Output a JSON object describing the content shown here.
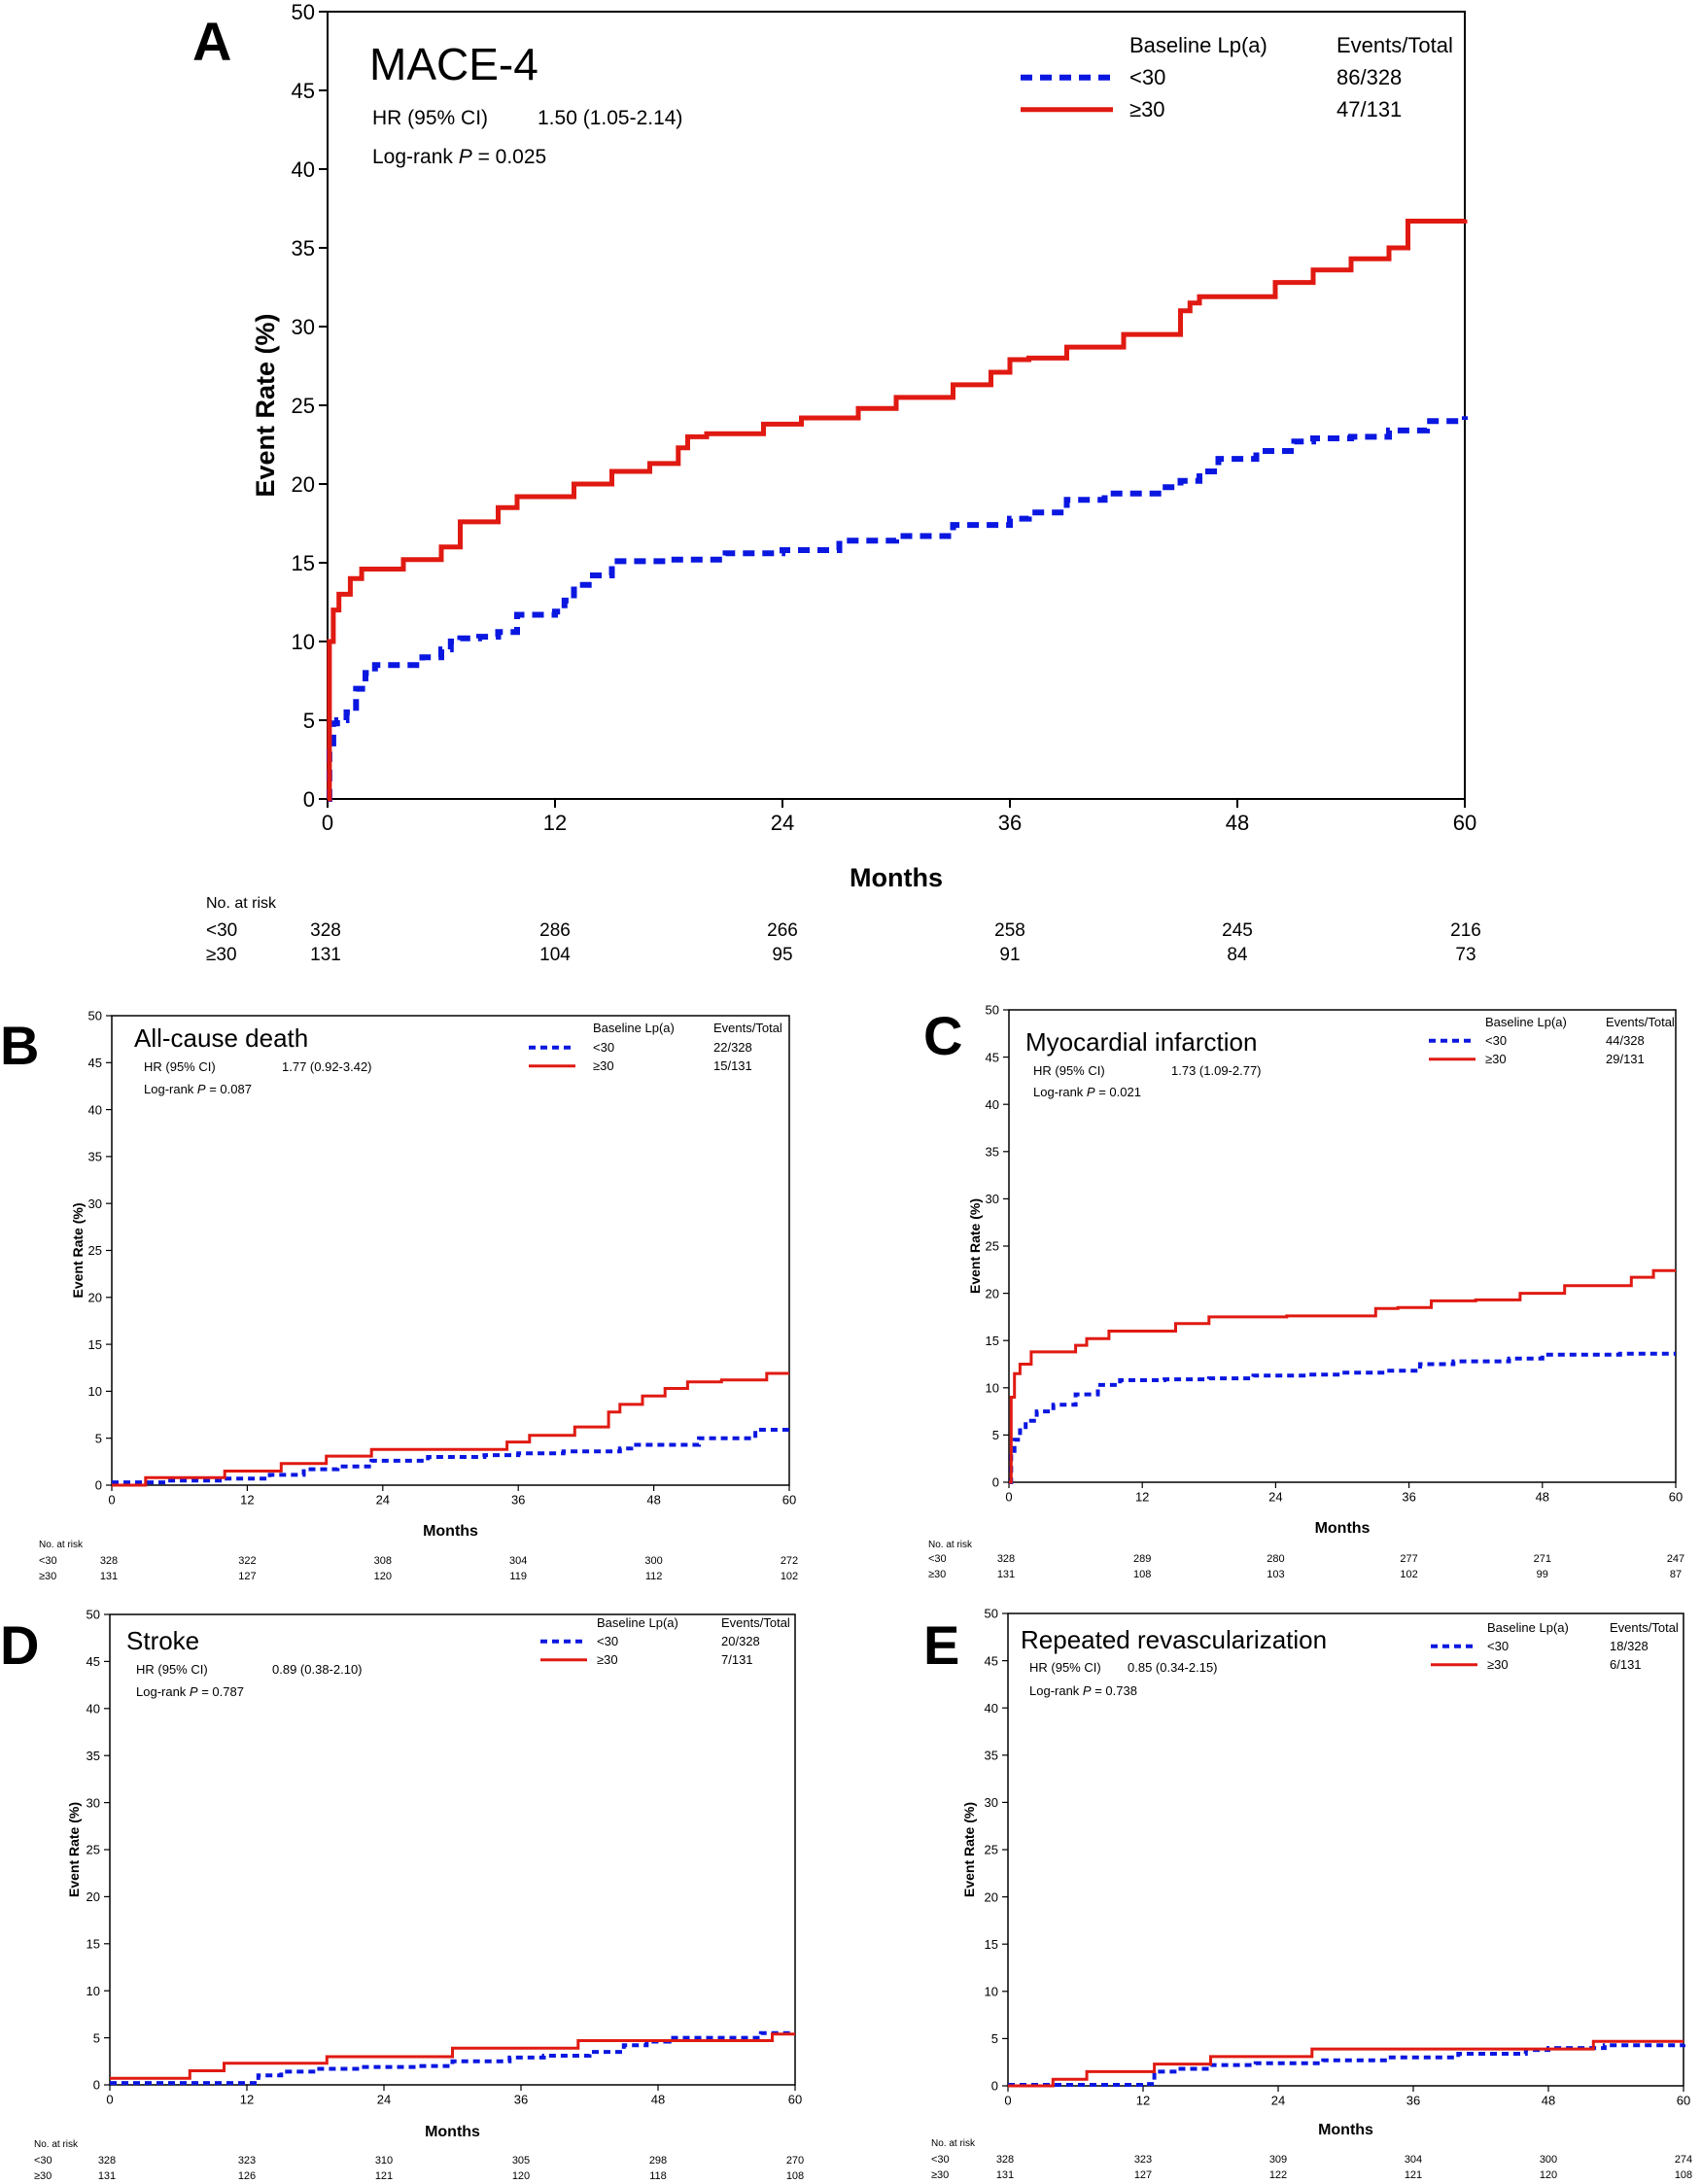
{
  "figure": {
    "series_colors": {
      "low": "#0a17e0",
      "high": "#e01a12"
    },
    "axis_color": "#000000"
  },
  "chart_data": [
    {
      "panel": "A",
      "type": "line",
      "title": "MACE-4",
      "hr_label": "HR (95% CI)",
      "hr_value": "1.50 (1.05-2.14)",
      "logrank_label": "Log-rank ",
      "p_symbol": "P",
      "p_eq": " = 0.025",
      "legend_header": "Baseline Lp(a)",
      "legend_events_header": "Events/Total",
      "xlabel": "Months",
      "ylabel": "Event Rate (%)",
      "xlim": [
        0,
        60
      ],
      "ylim": [
        0,
        50
      ],
      "xticks": [
        0,
        12,
        24,
        36,
        48,
        60
      ],
      "yticks": [
        0,
        5,
        10,
        15,
        20,
        25,
        30,
        35,
        40,
        45,
        50
      ],
      "risk_title": "No. at risk",
      "series": [
        {
          "name": "<30",
          "events": "86/328",
          "style": "dashed",
          "color": "#0a17e0",
          "at_risk": [
            "328",
            "286",
            "266",
            "258",
            "245",
            "216"
          ],
          "x": [
            0,
            0.1,
            0.3,
            0.5,
            1,
            1.5,
            2,
            2.5,
            4,
            5,
            6,
            6.5,
            7,
            8,
            9,
            10,
            12,
            12.5,
            13,
            14,
            15,
            18,
            21,
            24,
            27,
            30,
            33,
            36,
            37,
            39,
            41,
            44,
            45,
            46,
            47,
            49,
            51,
            52,
            54,
            56,
            58,
            60
          ],
          "y": [
            0,
            3,
            4.8,
            5.0,
            5.5,
            7.0,
            8.0,
            8.5,
            8.5,
            9.0,
            9.5,
            10.0,
            10.2,
            10.3,
            10.6,
            11.7,
            11.9,
            12.6,
            13.6,
            14.2,
            15.1,
            15.2,
            15.6,
            15.8,
            16.4,
            16.7,
            17.4,
            17.8,
            18.2,
            19.0,
            19.4,
            19.8,
            20.2,
            20.8,
            21.6,
            22.1,
            22.7,
            22.9,
            23.0,
            23.4,
            24.0,
            24.3
          ]
        },
        {
          "name": "≥30",
          "events": "47/131",
          "style": "solid",
          "color": "#e01a12",
          "at_risk": [
            "131",
            "104",
            "95",
            "91",
            "84",
            "73"
          ],
          "x": [
            0,
            0.1,
            0.3,
            0.6,
            1.2,
            1.8,
            4,
            6,
            7,
            9,
            10,
            13,
            15,
            17,
            18.5,
            19,
            20,
            23,
            25,
            28,
            30,
            33,
            35,
            36,
            37,
            39,
            42,
            45,
            45.5,
            46,
            50,
            52,
            54,
            56,
            57,
            60
          ],
          "y": [
            0,
            10,
            12,
            13,
            14,
            14.6,
            15.2,
            16.0,
            17.6,
            18.5,
            19.2,
            20.0,
            20.8,
            21.3,
            22.3,
            23.0,
            23.2,
            23.8,
            24.2,
            24.8,
            25.5,
            26.3,
            27.1,
            27.9,
            28.0,
            28.7,
            29.5,
            31.0,
            31.5,
            31.9,
            32.8,
            33.6,
            34.3,
            35.0,
            36.7,
            36.8
          ]
        }
      ]
    },
    {
      "panel": "B",
      "type": "line",
      "title": "All-cause death",
      "hr_label": "HR (95% CI)",
      "hr_value": "1.77 (0.92-3.42)",
      "logrank_label": "Log-rank ",
      "p_symbol": "P",
      "p_eq": " = 0.087",
      "legend_header": "Baseline Lp(a)",
      "legend_events_header": "Events/Total",
      "xlabel": "Months",
      "ylabel": "Event Rate (%)",
      "xlim": [
        0,
        60
      ],
      "ylim": [
        0,
        50
      ],
      "xticks": [
        0,
        12,
        24,
        36,
        48,
        60
      ],
      "yticks": [
        0,
        5,
        10,
        15,
        20,
        25,
        30,
        35,
        40,
        45,
        50
      ],
      "risk_title": "No. at risk",
      "series": [
        {
          "name": "<30",
          "events": "22/328",
          "style": "dashed",
          "color": "#0a17e0",
          "at_risk": [
            "328",
            "322",
            "308",
            "304",
            "300",
            "272"
          ],
          "x": [
            0,
            5,
            10,
            14,
            17,
            20,
            23,
            28,
            33,
            36,
            40,
            45,
            46,
            52,
            57,
            60
          ],
          "y": [
            0.3,
            0.5,
            0.7,
            1.1,
            1.7,
            2.0,
            2.6,
            3.0,
            3.2,
            3.4,
            3.6,
            3.9,
            4.3,
            5.0,
            5.9,
            6.0
          ]
        },
        {
          "name": "≥30",
          "events": "15/131",
          "style": "solid",
          "color": "#e01a12",
          "at_risk": [
            "131",
            "127",
            "120",
            "119",
            "112",
            "102"
          ],
          "x": [
            0,
            3,
            10,
            15,
            19,
            23,
            30,
            35,
            37,
            41,
            44,
            45,
            47,
            49,
            51,
            54,
            58,
            60
          ],
          "y": [
            0,
            0.8,
            1.5,
            2.3,
            3.1,
            3.8,
            3.8,
            4.6,
            5.3,
            6.2,
            7.8,
            8.6,
            9.5,
            10.3,
            11.0,
            11.2,
            11.9,
            11.9
          ]
        }
      ]
    },
    {
      "panel": "C",
      "type": "line",
      "title": "Myocardial infarction",
      "hr_label": "HR (95% CI)",
      "hr_value": "1.73 (1.09-2.77)",
      "logrank_label": "Log-rank ",
      "p_symbol": "P",
      "p_eq": " = 0.021",
      "legend_header": "Baseline Lp(a)",
      "legend_events_header": "Events/Total",
      "xlabel": "Months",
      "ylabel": "Event Rate (%)",
      "xlim": [
        0,
        60
      ],
      "ylim": [
        0,
        50
      ],
      "xticks": [
        0,
        12,
        24,
        36,
        48,
        60
      ],
      "yticks": [
        0,
        5,
        10,
        15,
        20,
        25,
        30,
        35,
        40,
        45,
        50
      ],
      "risk_title": "No. at risk",
      "series": [
        {
          "name": "<30",
          "events": "44/328",
          "style": "dashed",
          "color": "#0a17e0",
          "at_risk": [
            "328",
            "289",
            "280",
            "277",
            "271",
            "247"
          ],
          "x": [
            0,
            0.2,
            0.5,
            1,
            1.5,
            2.5,
            4,
            6,
            8,
            10,
            14,
            18,
            22,
            27,
            30,
            34,
            37,
            40,
            45,
            48,
            50,
            55,
            60
          ],
          "y": [
            0,
            3,
            4.5,
            5.5,
            6.5,
            7.5,
            8.2,
            9.3,
            10.3,
            10.8,
            10.9,
            11.0,
            11.3,
            11.4,
            11.6,
            11.8,
            12.5,
            12.8,
            13.1,
            13.5,
            13.5,
            13.6,
            13.6
          ]
        },
        {
          "name": "≥30",
          "events": "29/131",
          "style": "solid",
          "color": "#e01a12",
          "at_risk": [
            "131",
            "108",
            "103",
            "102",
            "99",
            "87"
          ],
          "x": [
            0,
            0.2,
            0.5,
            1,
            2,
            6,
            7,
            9,
            15,
            18,
            25,
            33,
            35,
            38,
            42,
            46,
            50,
            56,
            58,
            60
          ],
          "y": [
            0,
            9,
            11.5,
            12.5,
            13.8,
            14.5,
            15.2,
            16.0,
            16.8,
            17.5,
            17.6,
            18.4,
            18.5,
            19.2,
            19.3,
            20.0,
            20.8,
            21.7,
            22.4,
            22.4
          ]
        }
      ]
    },
    {
      "panel": "D",
      "type": "line",
      "title": "Stroke",
      "hr_label": "HR (95% CI)",
      "hr_value": "0.89 (0.38-2.10)",
      "logrank_label": "Log-rank ",
      "p_symbol": "P",
      "p_eq": " = 0.787",
      "legend_header": "Baseline Lp(a)",
      "legend_events_header": "Events/Total",
      "xlabel": "Months",
      "ylabel": "Event Rate (%)",
      "xlim": [
        0,
        60
      ],
      "ylim": [
        0,
        50
      ],
      "xticks": [
        0,
        12,
        24,
        36,
        48,
        60
      ],
      "yticks": [
        0,
        5,
        10,
        15,
        20,
        25,
        30,
        35,
        40,
        45,
        50
      ],
      "risk_title": "No. at risk",
      "series": [
        {
          "name": "<30",
          "events": "20/328",
          "style": "dashed",
          "color": "#0a17e0",
          "at_risk": [
            "328",
            "323",
            "310",
            "305",
            "298",
            "270"
          ],
          "x": [
            0,
            12,
            13,
            15,
            18,
            22,
            27,
            30,
            35,
            38,
            42,
            45,
            47,
            49,
            53,
            57,
            60
          ],
          "y": [
            0.2,
            0.2,
            1.0,
            1.4,
            1.7,
            1.9,
            2.0,
            2.5,
            2.9,
            3.1,
            3.5,
            4.2,
            4.6,
            5.0,
            5.0,
            5.5,
            5.5
          ]
        },
        {
          "name": "≥30",
          "events": "7/131",
          "style": "solid",
          "color": "#e01a12",
          "at_risk": [
            "131",
            "126",
            "121",
            "120",
            "118",
            "108"
          ],
          "x": [
            0,
            7,
            10,
            19,
            30,
            41,
            58,
            60
          ],
          "y": [
            0.7,
            1.5,
            2.3,
            3.0,
            3.9,
            4.7,
            5.4,
            5.4
          ]
        }
      ]
    },
    {
      "panel": "E",
      "type": "line",
      "title": "Repeated revascularization",
      "hr_label": "HR (95% CI)",
      "hr_value": "0.85 (0.34-2.15)",
      "logrank_label": "Log-rank ",
      "p_symbol": "P",
      "p_eq": " = 0.738",
      "legend_header": "Baseline Lp(a)",
      "legend_events_header": "Events/Total",
      "xlabel": "Months",
      "ylabel": "Event Rate (%)",
      "xlim": [
        0,
        60
      ],
      "ylim": [
        0,
        50
      ],
      "xticks": [
        0,
        12,
        24,
        36,
        48,
        60
      ],
      "yticks": [
        0,
        5,
        10,
        15,
        20,
        25,
        30,
        35,
        40,
        45,
        50
      ],
      "risk_title": "No. at risk",
      "series": [
        {
          "name": "<30",
          "events": "18/328",
          "style": "dashed",
          "color": "#0a17e0",
          "at_risk": [
            "328",
            "323",
            "309",
            "304",
            "300",
            "274"
          ],
          "x": [
            0,
            12,
            13,
            15,
            18,
            22,
            28,
            34,
            40,
            46,
            48,
            53,
            60
          ],
          "y": [
            0.1,
            0.2,
            1.5,
            1.8,
            2.2,
            2.4,
            2.7,
            3.0,
            3.4,
            3.8,
            4.0,
            4.3,
            4.4
          ]
        },
        {
          "name": "≥30",
          "events": "6/131",
          "style": "solid",
          "color": "#e01a12",
          "at_risk": [
            "131",
            "127",
            "122",
            "121",
            "120",
            "108"
          ],
          "x": [
            0,
            4,
            7,
            13,
            18,
            27,
            52,
            60
          ],
          "y": [
            0,
            0.7,
            1.5,
            2.3,
            3.1,
            3.9,
            4.7,
            4.7
          ]
        }
      ]
    }
  ]
}
